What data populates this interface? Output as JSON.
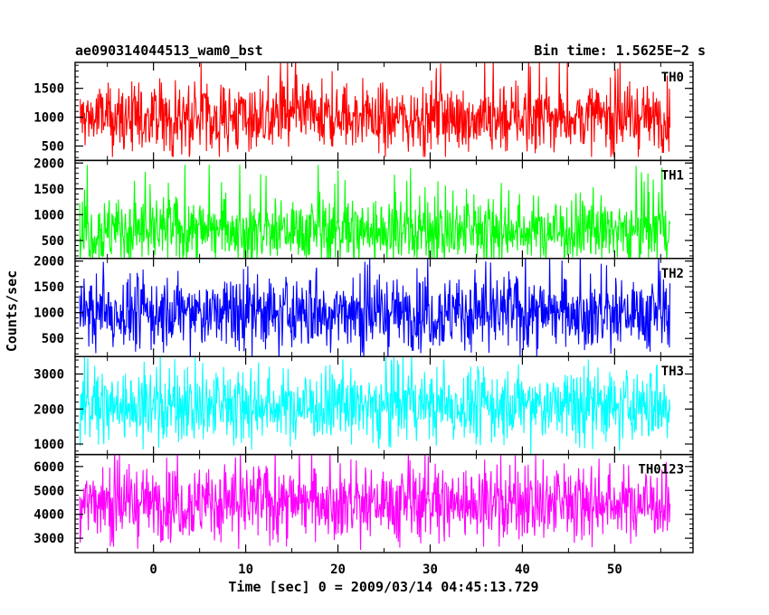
{
  "header": {
    "title": "ae090314044513_wam0_bst",
    "bin_time": "Bin time: 1.5625E−2 s"
  },
  "chart_data": {
    "type": "line",
    "xlabel": "Time [sec] 0 = 2009/03/14 04:45:13.729",
    "ylabel": "Counts/sec",
    "xlim": [
      -8.5,
      58.5
    ],
    "x_ticks": [
      0,
      10,
      20,
      30,
      40,
      50
    ],
    "x_range_data": [
      -8,
      56
    ],
    "grid": false,
    "panels": [
      {
        "name": "TH0",
        "color": "#ff0000",
        "ylim": [
          250,
          1950
        ],
        "y_ticks": [
          500,
          1000,
          1500
        ],
        "y_tick_labels": [
          "500",
          "1000",
          "1500"
        ],
        "mean": 1000,
        "approx_min": 400,
        "approx_max": 1950
      },
      {
        "name": "TH1",
        "color": "#00ff00",
        "ylim": [
          150,
          2050
        ],
        "y_ticks": [
          500,
          1000,
          1500,
          2000
        ],
        "y_tick_labels": [
          "500",
          "1000",
          "1500",
          "2000"
        ],
        "mean": 700,
        "approx_min": 200,
        "approx_max": 1900
      },
      {
        "name": "TH2",
        "color": "#0000ff",
        "ylim": [
          150,
          2050
        ],
        "y_ticks": [
          500,
          1000,
          1500,
          2000
        ],
        "y_tick_labels": [
          "500",
          "1000",
          "1500",
          "2000"
        ],
        "mean": 1000,
        "approx_min": 200,
        "approx_max": 2050
      },
      {
        "name": "TH3",
        "color": "#00ffff",
        "ylim": [
          700,
          3500
        ],
        "y_ticks": [
          1000,
          2000,
          3000
        ],
        "y_tick_labels": [
          "1000",
          "2000",
          "3000"
        ],
        "mean": 2100,
        "approx_min": 800,
        "approx_max": 3500
      },
      {
        "name": "TH0123",
        "color": "#ff00ff",
        "ylim": [
          2400,
          6500
        ],
        "y_ticks": [
          3000,
          4000,
          5000,
          6000
        ],
        "y_tick_labels": [
          "3000",
          "4000",
          "5000",
          "6000"
        ],
        "mean": 4500,
        "approx_min": 2500,
        "approx_max": 6500
      }
    ]
  }
}
